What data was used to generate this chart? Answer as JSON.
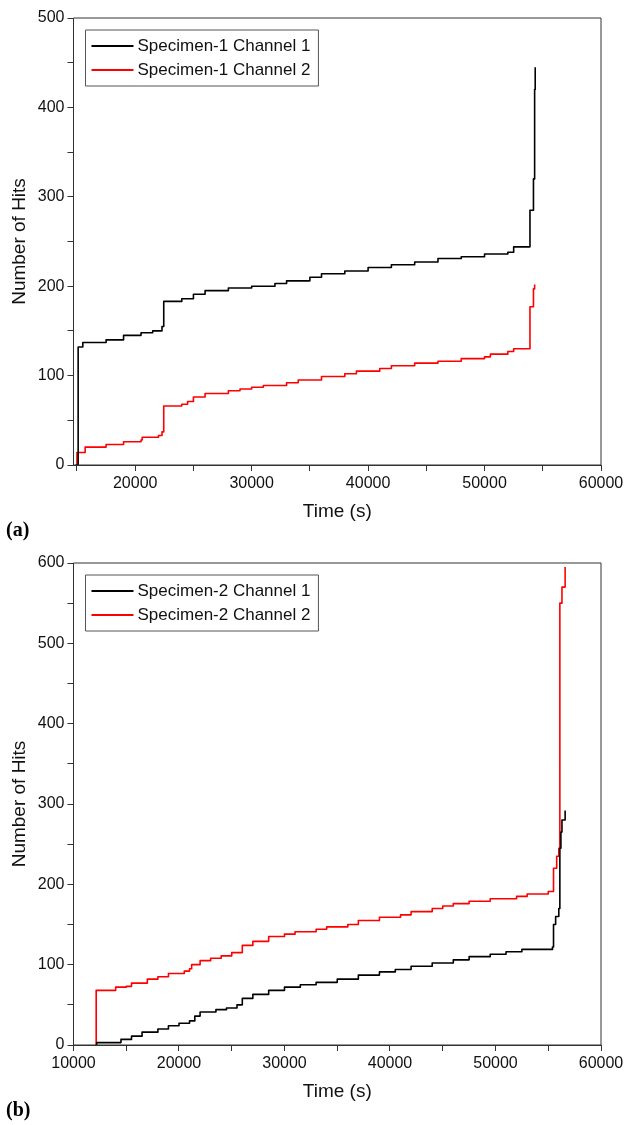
{
  "chart_data": [
    {
      "type": "step",
      "xlabel": "Time (s)",
      "ylabel": "Number of Hits",
      "annotations": [
        "(a)"
      ],
      "legend": "top left",
      "marker": "none",
      "xlim": [
        14700,
        60000
      ],
      "ylim": [
        0,
        500
      ],
      "xticks": [
        {
          "value": 15000,
          "label": null
        },
        20000,
        {
          "value": 25000,
          "label": null
        },
        30000,
        {
          "value": 35000,
          "label": null
        },
        40000,
        {
          "value": 45000,
          "label": null
        },
        50000,
        {
          "value": 55000,
          "label": null
        },
        60000
      ],
      "yticks": [
        0,
        {
          "value": 50,
          "label": null
        },
        100,
        {
          "value": 150,
          "label": null
        },
        200,
        {
          "value": 250,
          "label": null
        },
        300,
        {
          "value": 350,
          "label": null
        },
        400,
        {
          "value": 450,
          "label": null
        },
        500
      ],
      "series": [
        {
          "name": "Specimen-1 Channel 1",
          "color": "#000000",
          "x": [
            14900,
            15100,
            15500,
            17500,
            19000,
            20500,
            21500,
            22300,
            22450,
            24000,
            25000,
            26000,
            28000,
            30000,
            32000,
            33000,
            35000,
            36000,
            38000,
            40000,
            42000,
            44000,
            46000,
            48000,
            50000,
            52000,
            52500,
            53900,
            54200,
            54300,
            54350
          ],
          "values": [
            0,
            132,
            137,
            140,
            145,
            148,
            150,
            155,
            183,
            186,
            191,
            195,
            198,
            200,
            203,
            206,
            210,
            214,
            217,
            221,
            224,
            227,
            231,
            233,
            236,
            238,
            244,
            285,
            320,
            420,
            445
          ]
        },
        {
          "name": "Specimen-1 Channel 2",
          "color": "#ff0000",
          "x": [
            14900,
            15000,
            15700,
            17500,
            19000,
            20500,
            20600,
            22000,
            22300,
            22450,
            24000,
            24500,
            25000,
            26000,
            28000,
            29000,
            30000,
            31000,
            33000,
            34000,
            36000,
            38000,
            39000,
            41000,
            42000,
            44000,
            46000,
            48000,
            50000,
            50500,
            52000,
            52500,
            53900,
            54200,
            54300
          ],
          "values": [
            0,
            14,
            20,
            23,
            26,
            28,
            31,
            33,
            37,
            66,
            68,
            71,
            76,
            80,
            83,
            85,
            87,
            89,
            92,
            95,
            99,
            102,
            105,
            108,
            111,
            114,
            116,
            119,
            121,
            124,
            127,
            130,
            177,
            197,
            202
          ]
        }
      ]
    },
    {
      "type": "step",
      "xlabel": "Time (s)",
      "ylabel": "Number of Hits",
      "annotations": [
        "(b)"
      ],
      "legend": "top left",
      "marker": "none",
      "xlim": [
        10000,
        60000
      ],
      "ylim": [
        0,
        600
      ],
      "xticks": [
        10000,
        {
          "value": 15000,
          "label": null
        },
        20000,
        {
          "value": 25000,
          "label": null
        },
        30000,
        {
          "value": 35000,
          "label": null
        },
        40000,
        {
          "value": 45000,
          "label": null
        },
        50000,
        {
          "value": 55000,
          "label": null
        },
        60000
      ],
      "yticks": [
        0,
        {
          "value": 50,
          "label": null
        },
        100,
        {
          "value": 150,
          "label": null
        },
        200,
        {
          "value": 250,
          "label": null
        },
        300,
        {
          "value": 350,
          "label": null
        },
        400,
        {
          "value": 450,
          "label": null
        },
        500,
        {
          "value": 550,
          "label": null
        },
        600
      ],
      "series": [
        {
          "name": "Specimen-2 Channel 1",
          "color": "#000000",
          "x": [
            12100,
            12200,
            14500,
            15500,
            16500,
            18000,
            19000,
            20000,
            21000,
            21500,
            22000,
            23500,
            24500,
            25500,
            26000,
            27000,
            28500,
            30000,
            31500,
            33000,
            35000,
            37000,
            39000,
            40500,
            42000,
            44000,
            46000,
            47500,
            49500,
            51000,
            52500,
            55400,
            55500,
            55700,
            56000,
            56100,
            56200,
            56300,
            56600
          ],
          "values": [
            0,
            3,
            7,
            11,
            16,
            20,
            24,
            27,
            30,
            36,
            41,
            44,
            46,
            50,
            58,
            63,
            68,
            72,
            75,
            78,
            82,
            87,
            91,
            94,
            98,
            102,
            106,
            110,
            113,
            116,
            119,
            122,
            150,
            160,
            170,
            245,
            265,
            280,
            292
          ]
        },
        {
          "name": "Specimen-2 Channel 2",
          "color": "#ff0000",
          "x": [
            12100,
            12150,
            14000,
            15000,
            15500,
            17000,
            18000,
            19000,
            20500,
            21000,
            21200,
            22000,
            23000,
            24000,
            25000,
            26000,
            27000,
            28500,
            30000,
            31000,
            33000,
            34000,
            36000,
            37000,
            39000,
            41000,
            42000,
            44000,
            45000,
            46000,
            47500,
            49500,
            52000,
            53000,
            55000,
            55500,
            55800,
            56000,
            56100,
            56300,
            56600
          ],
          "values": [
            0,
            68,
            72,
            73,
            77,
            82,
            85,
            89,
            92,
            95,
            100,
            105,
            108,
            111,
            115,
            124,
            129,
            135,
            138,
            141,
            144,
            147,
            150,
            155,
            159,
            162,
            166,
            170,
            173,
            176,
            179,
            182,
            185,
            188,
            191,
            220,
            235,
            245,
            550,
            570,
            595
          ]
        }
      ]
    }
  ]
}
